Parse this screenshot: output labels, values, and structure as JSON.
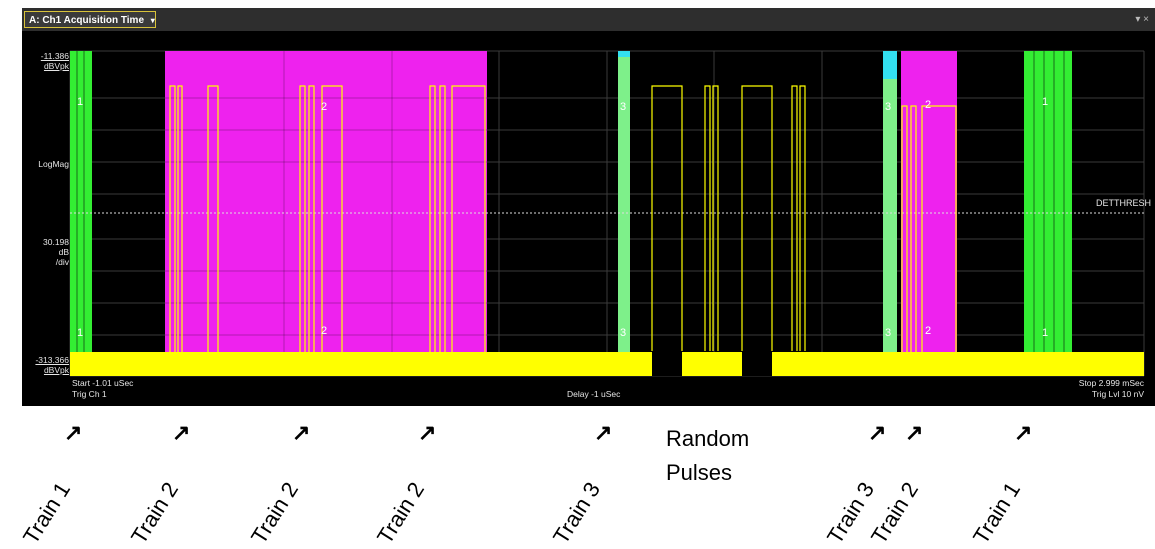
{
  "window": {
    "tab_title": "A: Ch1 Acquisition Time",
    "tab_caret": "▾",
    "controls": "▾ ×"
  },
  "plot": {
    "y_top_value": "-11.386",
    "y_top_unit": "dBVpk",
    "format_label": "LogMag",
    "scale_value": "30.198",
    "scale_unit_1": "dB",
    "scale_unit_2": "/div",
    "y_bottom_value": "-313.366",
    "y_bottom_unit": "dBVpk",
    "start_label": "Start -1.01 uSec",
    "trig_channel": "Trig Ch 1",
    "delay_label": "Delay -1 uSec",
    "stop_label": "Stop 2.999 mSec",
    "trig_level": "Trig Lvl 10 nV",
    "threshold_label": "DETTHRESH",
    "pulse_markers": [
      "1",
      "2",
      "3"
    ],
    "colors": {
      "train1": "#33ee33",
      "train2": "#ee22ee",
      "train3": "#33e0f0",
      "noise": "#ffff00",
      "background": "#000000"
    }
  },
  "annotations": {
    "train_labels": [
      "Train 1",
      "Train 2",
      "Train 2",
      "Train 2",
      "Train 3",
      "Train 3",
      "Train 2",
      "Train 1"
    ],
    "random_label": "Random\nPulses"
  }
}
